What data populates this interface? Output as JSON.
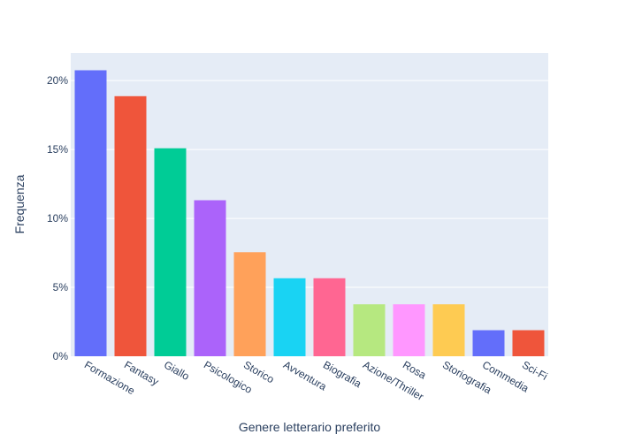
{
  "chart_data": {
    "type": "bar",
    "title": "",
    "xlabel": "Genere letterario preferito",
    "ylabel": "Frequenza",
    "ylim": [
      0,
      0.22
    ],
    "ytick_values": [
      0,
      0.05,
      0.1,
      0.15,
      0.2
    ],
    "ytick_labels": [
      "0%",
      "5%",
      "10%",
      "15%",
      "20%"
    ],
    "grid": true,
    "legend": "none",
    "categories": [
      "Formazione",
      "Fantasy",
      "Giallo",
      "Psicologico",
      "Storico",
      "Avventura",
      "Biografia",
      "Azione/Thriller",
      "Rosa",
      "Storiografia",
      "Commedia",
      "Sci-Fi"
    ],
    "values": [
      0.2075,
      0.1887,
      0.1509,
      0.1132,
      0.0755,
      0.0566,
      0.0566,
      0.0377,
      0.0377,
      0.0377,
      0.0189,
      0.0189
    ],
    "colors": [
      "#636efa",
      "#EF553B",
      "#00cc96",
      "#ab63fa",
      "#FFA15A",
      "#19d3f3",
      "#FF6692",
      "#B6E880",
      "#FF97FF",
      "#FECB52",
      "#636efa",
      "#EF553B"
    ],
    "plot_background": "#E5ECF6",
    "text_color": "#2a3f5f"
  }
}
